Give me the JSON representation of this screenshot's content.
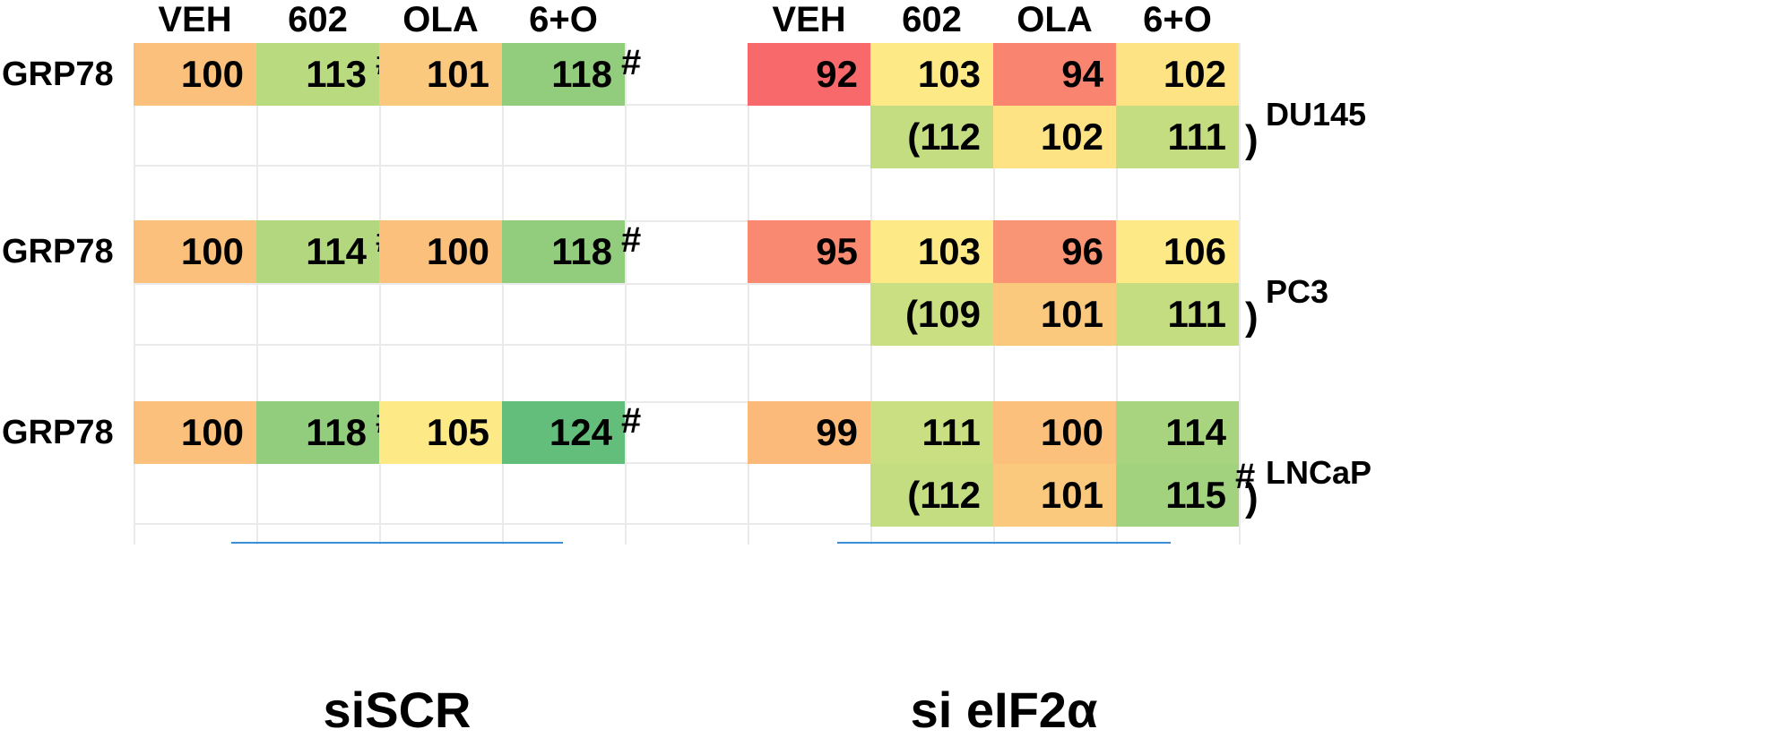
{
  "chart_data": {
    "type": "heatmap",
    "protein": "GRP78",
    "columns": [
      "VEH",
      "602",
      "OLA",
      "6+O"
    ],
    "groups": [
      {
        "name": "siSCR"
      },
      {
        "name": "si eIF2α"
      }
    ],
    "colors": {
      "red": "#f8696b",
      "orange_red": "#fb8d72",
      "orange": "#fcbf7b",
      "yellow": "#fde986",
      "light_green": "#c9df81",
      "mid_green": "#a2d27e",
      "green": "#8ccb7c",
      "dark_green": "#63be7b"
    },
    "panels": [
      {
        "cell_line": "DU145",
        "row_label": "GRP78",
        "siSCR": {
          "values": [
            "100",
            "113",
            "101",
            "118"
          ],
          "colors": [
            "#fbc17c",
            "#bada80",
            "#fbc97d",
            "#92cc7d"
          ],
          "hash_after": [
            false,
            true,
            false,
            true
          ]
        },
        "si_eif2a": {
          "values": [
            "92",
            "103",
            "94",
            "102"
          ],
          "colors": [
            "#f8696b",
            "#fde986",
            "#f98570",
            "#fde384"
          ],
          "paren_values": [
            "(112",
            "102",
            "111"
          ],
          "paren_colors": [
            "#c4dd81",
            "#fde384",
            "#c4dd81"
          ],
          "close_paren": ")",
          "hash_after_last": false
        }
      },
      {
        "cell_line": "PC3",
        "row_label": "GRP78",
        "siSCR": {
          "values": [
            "100",
            "114",
            "100",
            "118"
          ],
          "colors": [
            "#fbc17c",
            "#b3d77f",
            "#fbc17c",
            "#92cc7d"
          ],
          "hash_after": [
            false,
            true,
            false,
            true
          ]
        },
        "si_eif2a": {
          "values": [
            "95",
            "103",
            "96",
            "106"
          ],
          "colors": [
            "#f98a71",
            "#fde986",
            "#f99574",
            "#fde986"
          ],
          "paren_values": [
            "(109",
            "101",
            "111"
          ],
          "paren_colors": [
            "#c9df81",
            "#fbc97d",
            "#c4dd81"
          ],
          "close_paren": ")",
          "hash_after_last": false
        }
      },
      {
        "cell_line": "LNCaP",
        "row_label": "GRP78",
        "siSCR": {
          "values": [
            "100",
            "118",
            "105",
            "124"
          ],
          "colors": [
            "#fbc17c",
            "#92cc7d",
            "#fde986",
            "#63be7b"
          ],
          "hash_after": [
            false,
            true,
            false,
            true
          ]
        },
        "si_eif2a": {
          "values": [
            "99",
            "111",
            "100",
            "114"
          ],
          "colors": [
            "#fbb97a",
            "#c9df81",
            "#fbc17c",
            "#a9d47f"
          ],
          "paren_values": [
            "(112",
            "101",
            "115"
          ],
          "paren_colors": [
            "#c4dd81",
            "#fbc97d",
            "#a2d27e"
          ],
          "close_paren": ")",
          "hash_after_last": true
        }
      }
    ],
    "hash_symbol": "#"
  }
}
